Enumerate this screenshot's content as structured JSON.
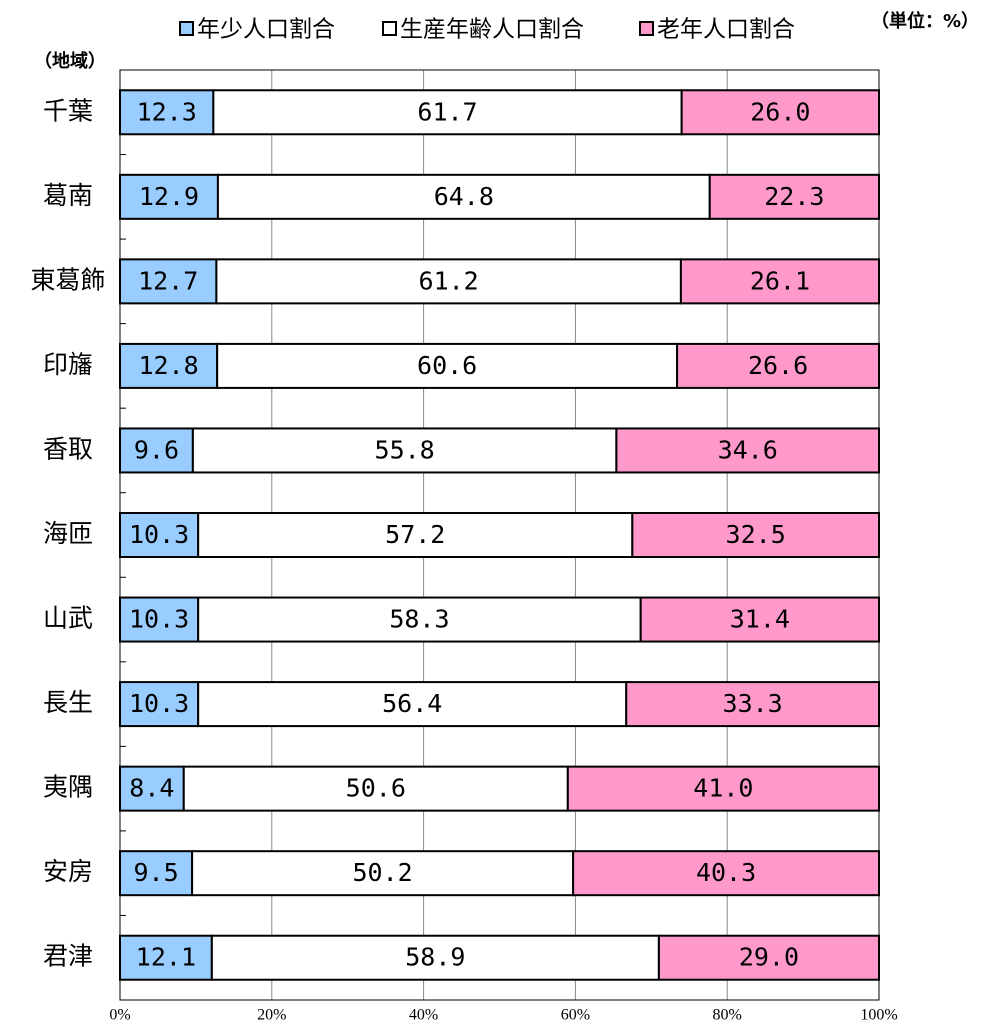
{
  "chart_data": {
    "type": "stacked-bar-horizontal",
    "unit_label": "（単位：%）",
    "y_label": "（地域）",
    "categories": [
      "千葉",
      "葛南",
      "東葛飾",
      "印旛",
      "香取",
      "海匝",
      "山武",
      "長生",
      "夷隅",
      "安房",
      "君津"
    ],
    "series": [
      {
        "name": "年少人口割合",
        "color": "#99ccff",
        "values": [
          12.3,
          12.9,
          12.7,
          12.8,
          9.6,
          10.3,
          10.3,
          10.3,
          8.4,
          9.5,
          12.1
        ],
        "value_labels": [
          "12.3",
          "12.9",
          "12.7",
          "12.8",
          "9.6",
          "10.3",
          "10.3",
          "10.3",
          "8.4",
          "9.5",
          "12.1"
        ]
      },
      {
        "name": "生産年齢人口割合",
        "color": "#ffffff",
        "values": [
          61.7,
          64.8,
          61.2,
          60.6,
          55.8,
          57.2,
          58.3,
          56.4,
          50.6,
          50.2,
          58.9
        ],
        "value_labels": [
          "61.7",
          "64.8",
          "61.2",
          "60.6",
          "55.8",
          "57.2",
          "58.3",
          "56.4",
          "50.6",
          "50.2",
          "58.9"
        ]
      },
      {
        "name": "老年人口割合",
        "color": "#ff99cc",
        "values": [
          26.0,
          22.3,
          26.1,
          26.6,
          34.6,
          32.5,
          31.4,
          33.3,
          41.0,
          40.3,
          29.0
        ],
        "value_labels": [
          "26.0",
          "22.3",
          "26.1",
          "26.6",
          "34.6",
          "32.5",
          "31.4",
          "33.3",
          "41.0",
          "40.3",
          "29.0"
        ]
      }
    ],
    "xlim": [
      0,
      100
    ],
    "xticks": [
      {
        "value": 0,
        "label": "0%"
      },
      {
        "value": 20,
        "label": "20%"
      },
      {
        "value": 40,
        "label": "40%"
      },
      {
        "value": 60,
        "label": "60%"
      },
      {
        "value": 80,
        "label": "80%"
      },
      {
        "value": 100,
        "label": "100%"
      }
    ],
    "grid": true
  }
}
